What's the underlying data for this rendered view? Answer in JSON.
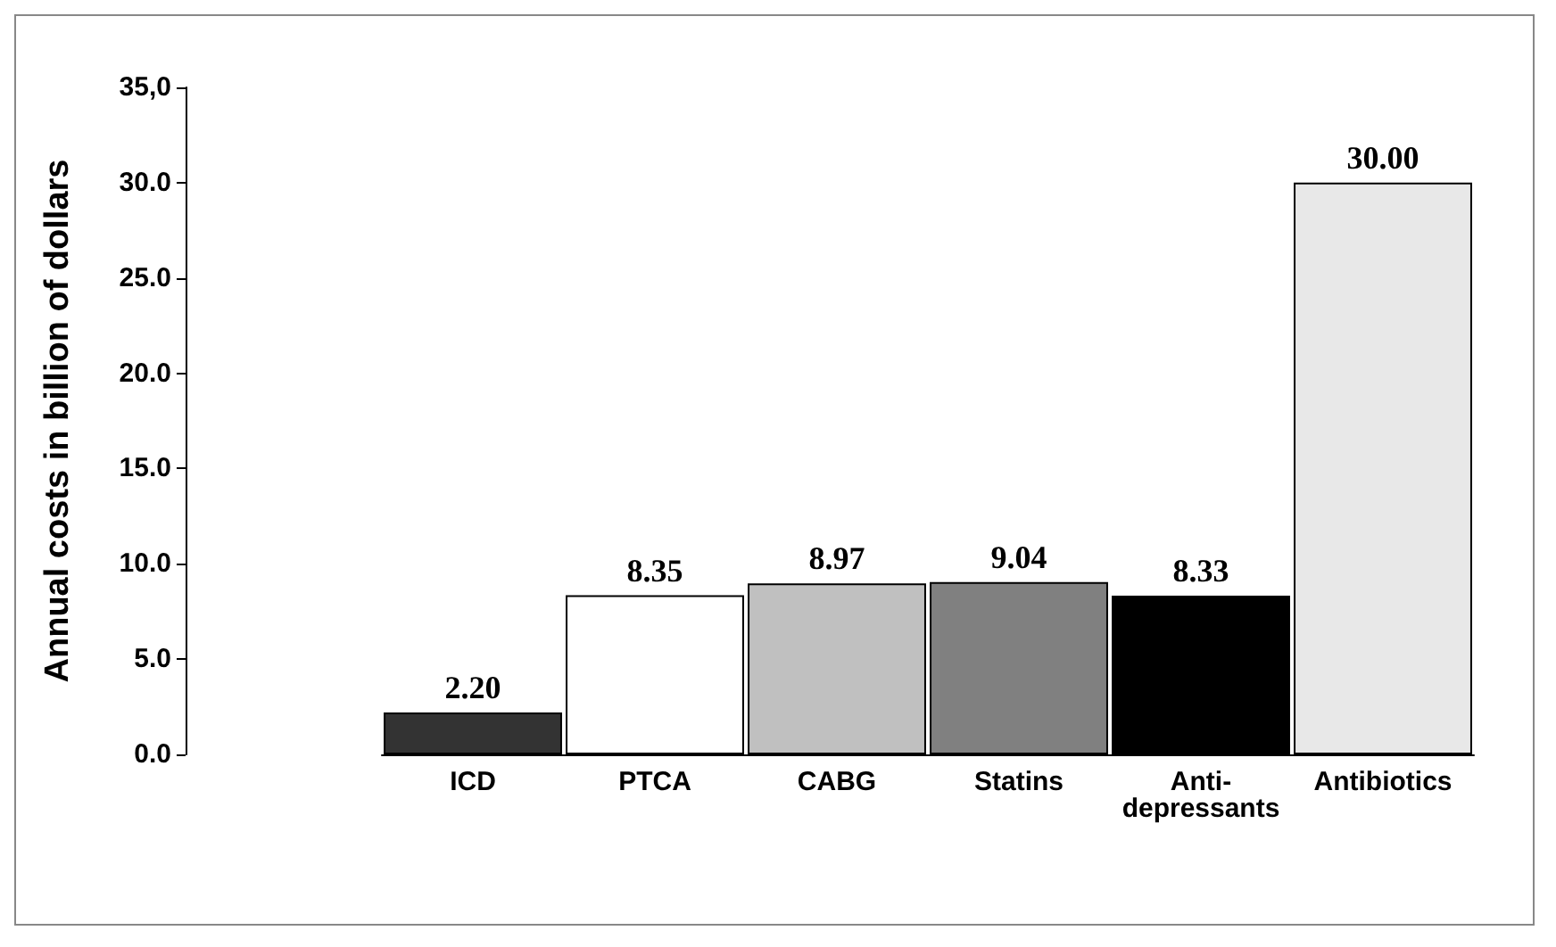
{
  "chart_data": {
    "type": "bar",
    "ylabel": "Annual costs in billion of dollars",
    "categories": [
      "ICD",
      "PTCA",
      "CABG",
      "Statins",
      "Anti-\ndepressants",
      "Antibiotics"
    ],
    "values": [
      2.2,
      8.35,
      8.97,
      9.04,
      8.33,
      30.0
    ],
    "value_labels": [
      "2.20",
      "8.35",
      "8.97",
      "9.04",
      "8.33",
      "30.00"
    ],
    "colors": [
      "#333333",
      "#ffffff",
      "#c0c0c0",
      "#808080",
      "#000000",
      "#e8e8e8"
    ],
    "ylim": [
      0,
      35
    ],
    "yticks": [
      {
        "value": 0,
        "label": "0.0"
      },
      {
        "value": 5,
        "label": "5.0"
      },
      {
        "value": 10,
        "label": "10.0"
      },
      {
        "value": 15,
        "label": "15.0"
      },
      {
        "value": 20,
        "label": "20.0"
      },
      {
        "value": 25,
        "label": "25.0"
      },
      {
        "value": 30,
        "label": "30.0"
      },
      {
        "value": 35,
        "label": "35,0"
      }
    ],
    "grid": false
  }
}
